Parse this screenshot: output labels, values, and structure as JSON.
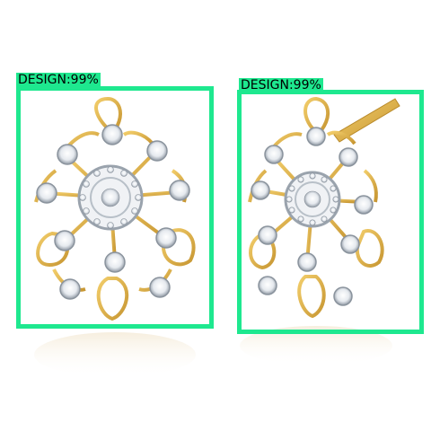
{
  "detections": [
    {
      "label": "DESIGN:99%",
      "color": "#1ee88f"
    },
    {
      "label": "DESIGN:99%",
      "color": "#1ee88f"
    }
  ],
  "colors": {
    "gold": "#e0b24a",
    "gold_dark": "#b98a2a",
    "silver": "#9aa3ad",
    "diamond": "#f4f6f8"
  }
}
